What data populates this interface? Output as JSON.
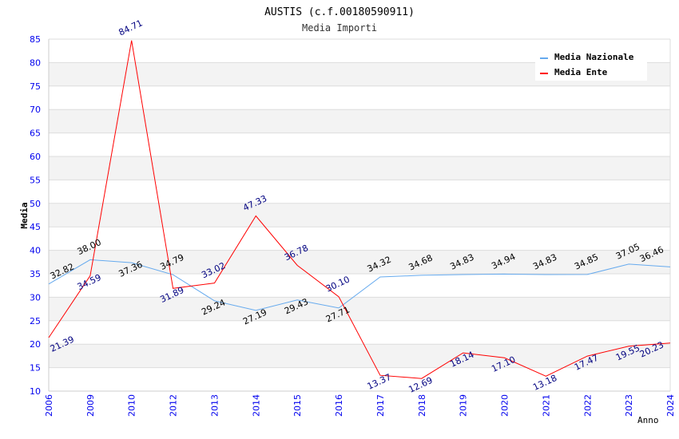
{
  "chart_data": {
    "type": "line",
    "title": "AUSTIS (c.f.00180590911)",
    "subtitle": "Media Importi",
    "xlabel": "Anno",
    "ylabel": "Media",
    "ylim": [
      10,
      85
    ],
    "yticks": [
      "10",
      "15",
      "20",
      "25",
      "30",
      "35",
      "40",
      "45",
      "50",
      "55",
      "60",
      "65",
      "70",
      "75",
      "80",
      "85"
    ],
    "categories": [
      "2006",
      "2009",
      "2010",
      "2012",
      "2013",
      "2014",
      "2015",
      "2016",
      "2017",
      "2018",
      "2019",
      "2020",
      "2021",
      "2022",
      "2023",
      "2024"
    ],
    "grid": true,
    "legend_position": "top-right",
    "series": [
      {
        "name": "Media Nazionale",
        "color": "#66aaee",
        "label_color": "#000000",
        "values": [
          32.82,
          38.0,
          37.36,
          34.79,
          29.24,
          27.19,
          29.43,
          27.71,
          34.32,
          34.68,
          34.83,
          34.94,
          34.83,
          34.85,
          37.05,
          36.46
        ],
        "labels": [
          "32.82",
          "38.00",
          "37.36",
          "34.79",
          "29.24",
          "27.19",
          "29.43",
          "27.71",
          "34.32",
          "34.68",
          "34.83",
          "34.94",
          "34.83",
          "34.85",
          "37.05",
          "36.46"
        ]
      },
      {
        "name": "Media Ente",
        "color": "#ff0000",
        "label_color": "#000080",
        "values": [
          21.39,
          34.59,
          84.71,
          31.89,
          33.02,
          47.33,
          36.78,
          30.1,
          13.37,
          12.69,
          18.14,
          17.1,
          13.18,
          17.47,
          19.55,
          20.23
        ],
        "labels": [
          "21.39",
          "34.59",
          "84.71",
          "31.89",
          "33.02",
          "47.33",
          "36.78",
          "30.10",
          "13.37",
          "12.69",
          "18.14",
          "17.10",
          "13.18",
          "17.47",
          "19.55",
          "20.23"
        ]
      }
    ]
  }
}
